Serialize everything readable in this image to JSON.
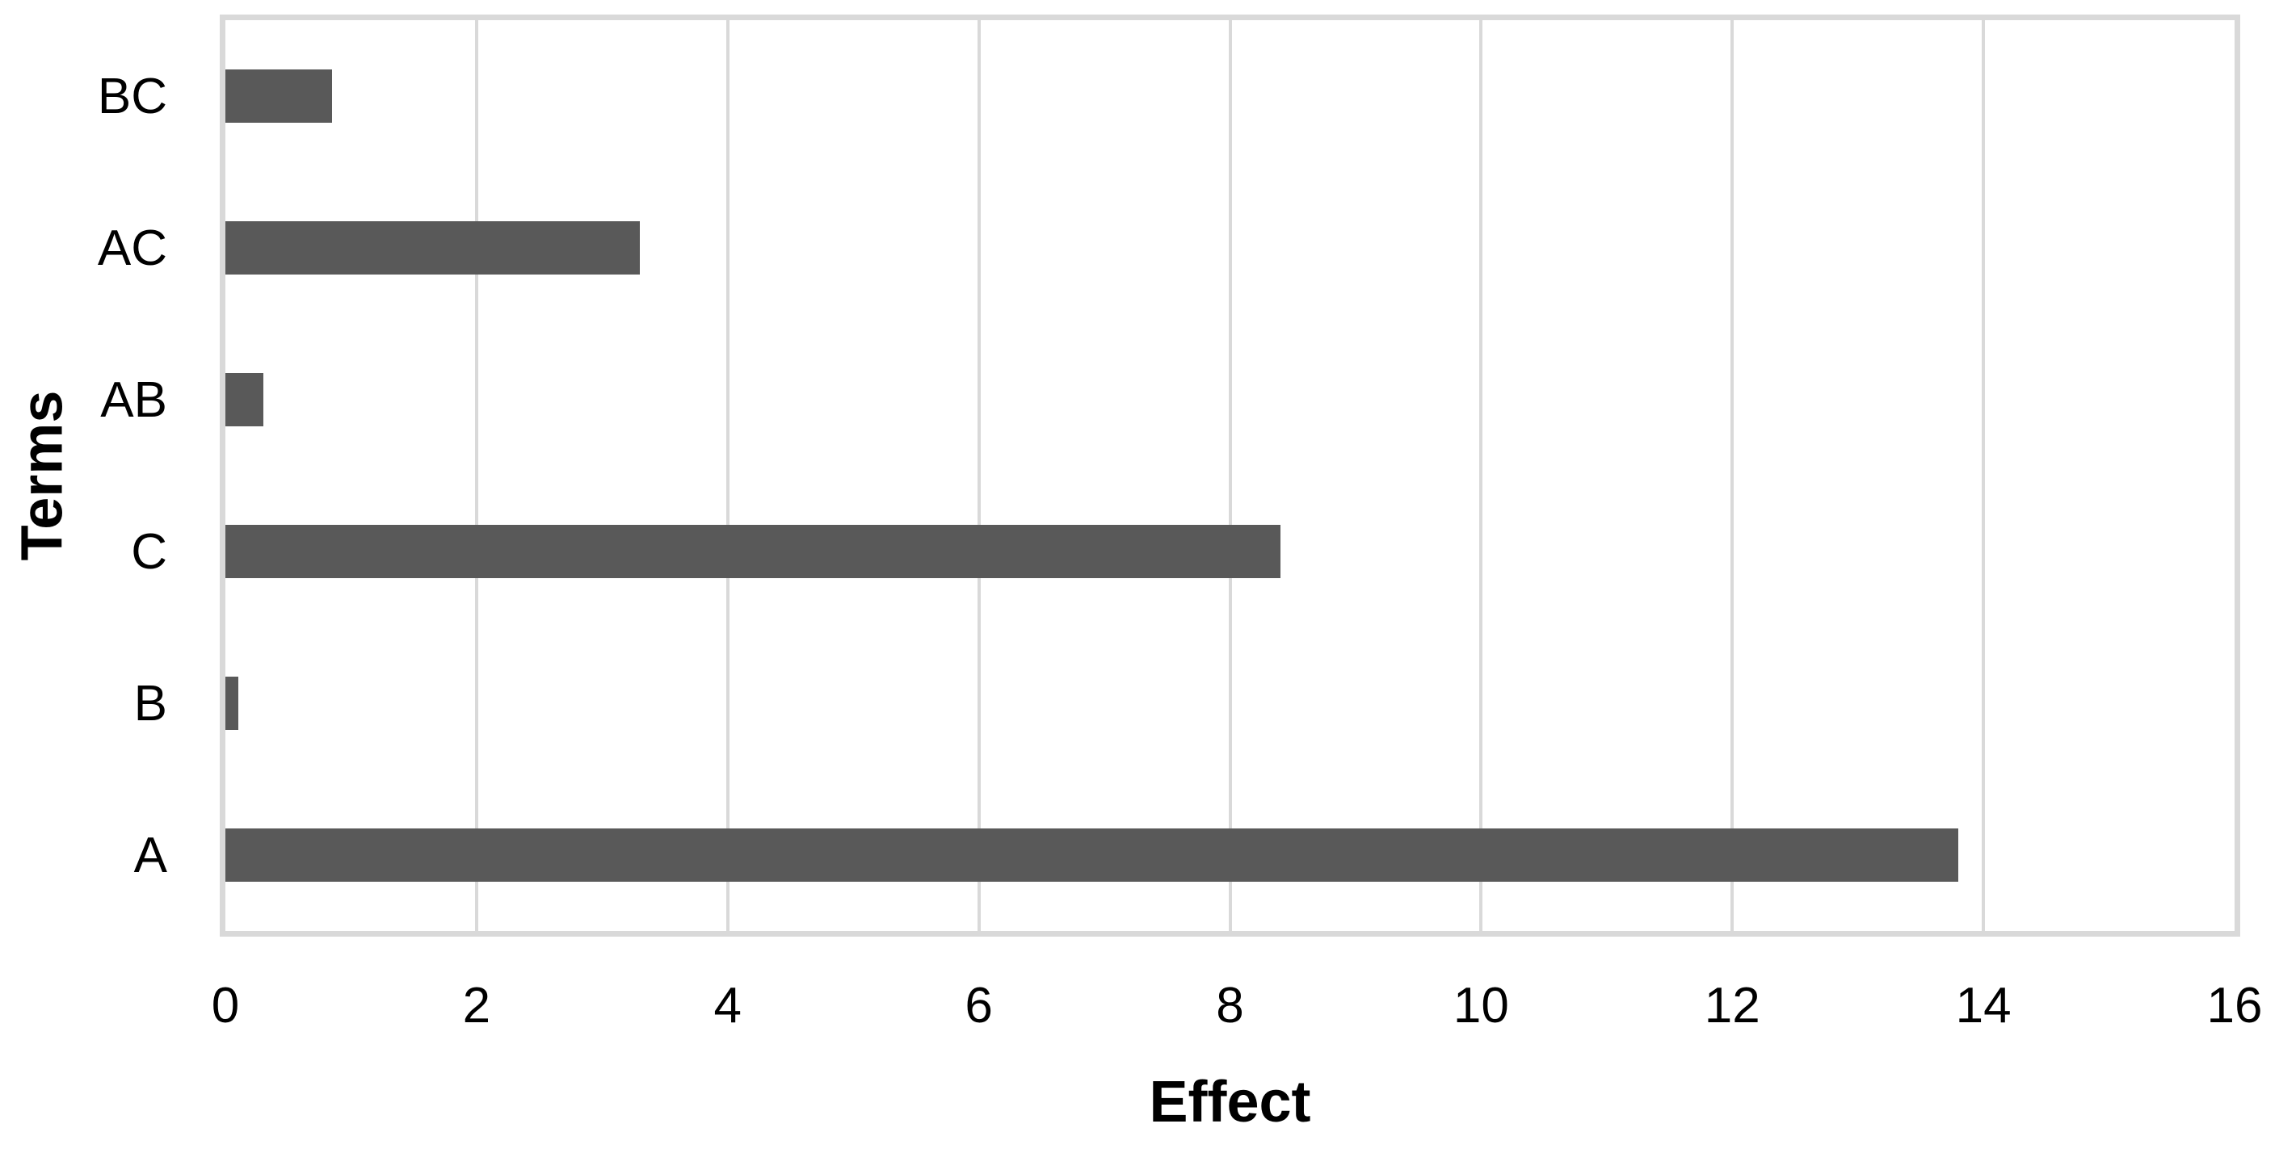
{
  "chart_data": {
    "type": "bar",
    "orientation": "horizontal",
    "title": "",
    "xlabel": "Effect",
    "ylabel": "Terms",
    "categories_top_to_bottom": [
      "BC",
      "AC",
      "AB",
      "C",
      "B",
      "A"
    ],
    "values": [
      0.85,
      3.3,
      0.3,
      8.4,
      0.1,
      13.8
    ],
    "xlim": [
      0,
      16
    ],
    "xticks": [
      0,
      2,
      4,
      6,
      8,
      10,
      12,
      14,
      16
    ],
    "grid": true,
    "legend": "none",
    "colors": {
      "bar": "#595959",
      "gridline": "#d9d9d9",
      "plot_border": "#d9d9d9",
      "text": "#000000",
      "background": "#ffffff"
    }
  }
}
